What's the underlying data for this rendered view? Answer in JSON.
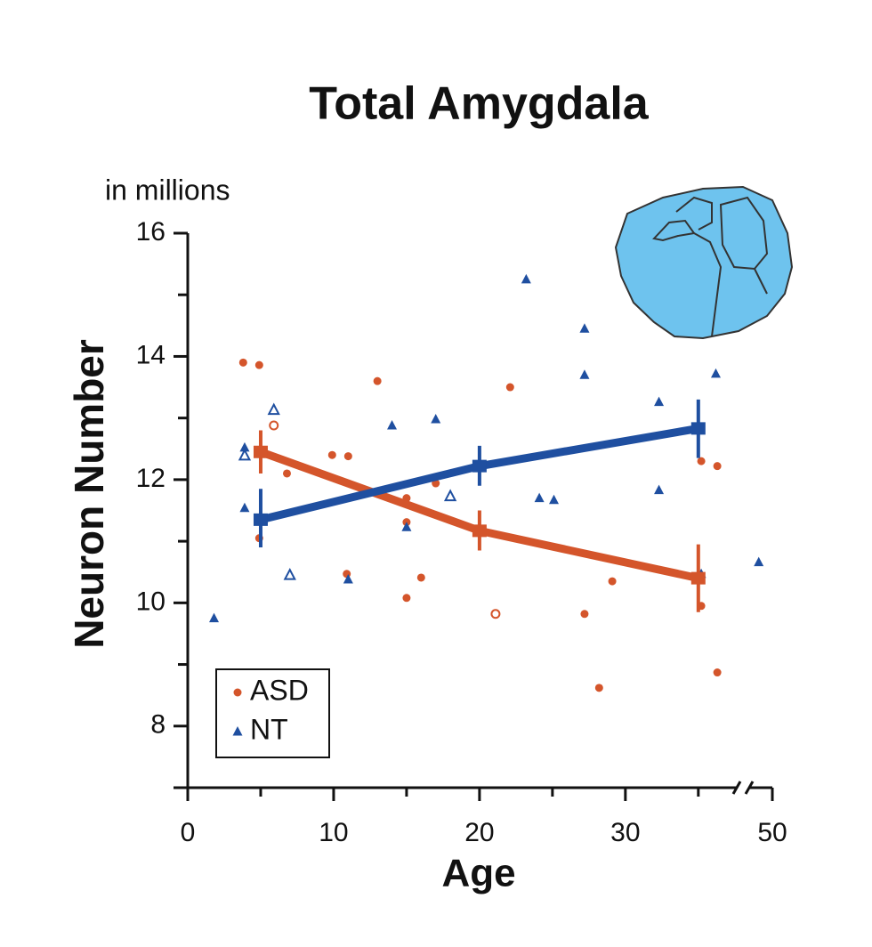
{
  "chart_data": {
    "type": "scatter",
    "title": "Total Amygdala",
    "y_unit": "in millions",
    "ylabel": "Neuron Number",
    "xlabel": "Age",
    "xlim": [
      0,
      50
    ],
    "x_break": [
      38,
      48
    ],
    "xticks": [
      0,
      10,
      20,
      30,
      50
    ],
    "xminor_ticks": [
      5,
      15,
      25,
      35
    ],
    "ylim": [
      7,
      16
    ],
    "yticks": [
      8,
      10,
      12,
      14,
      16
    ],
    "yminor_ticks": [
      9,
      11,
      13,
      15
    ],
    "legend": "lower left",
    "series": [
      {
        "name": "ASD",
        "color": "#d4552b",
        "marker": "circle",
        "x": [
          3.8,
          4.9,
          13.0,
          22.1,
          9.9,
          11.0,
          6.8,
          17.0,
          15.0,
          15.0,
          4.9,
          10.9,
          16.0,
          15.0,
          29.1,
          27.2,
          28.2,
          35.2,
          36.3,
          35.2,
          36.3
        ],
        "values": [
          13.9,
          13.86,
          13.6,
          13.5,
          12.4,
          12.38,
          12.1,
          11.94,
          11.7,
          11.31,
          11.05,
          10.47,
          10.41,
          10.08,
          10.35,
          9.82,
          8.62,
          12.3,
          12.22,
          9.95,
          8.87
        ],
        "open_x": [
          5.9,
          21.1
        ],
        "open_values": [
          12.88,
          9.82
        ],
        "fit": {
          "x": [
            5,
            20,
            35
          ],
          "values": [
            12.45,
            11.17,
            10.4
          ],
          "error_low": [
            12.1,
            10.85,
            9.85
          ],
          "error_high": [
            12.8,
            11.5,
            10.95
          ]
        }
      },
      {
        "name": "NT",
        "color": "#1f4fa0",
        "marker": "triangle",
        "x": [
          1.8,
          3.9,
          3.9,
          14.0,
          17.0,
          23.2,
          27.2,
          27.2,
          32.3,
          36.2,
          24.1,
          25.1,
          32.3,
          15.0,
          11.0,
          35.2,
          49.1
        ],
        "values": [
          9.75,
          12.52,
          11.54,
          12.88,
          12.98,
          15.25,
          14.45,
          13.7,
          13.26,
          13.72,
          11.7,
          11.67,
          11.83,
          11.23,
          10.38,
          10.47,
          10.66
        ],
        "open_x": [
          3.9,
          5.9,
          7.0,
          18.0
        ],
        "open_values": [
          12.39,
          13.13,
          10.45,
          11.73
        ],
        "fit": {
          "x": [
            5,
            20,
            35
          ],
          "values": [
            11.35,
            12.22,
            12.83
          ],
          "error_low": [
            10.9,
            11.9,
            12.35
          ],
          "error_high": [
            11.85,
            12.55,
            13.3
          ]
        }
      }
    ]
  }
}
